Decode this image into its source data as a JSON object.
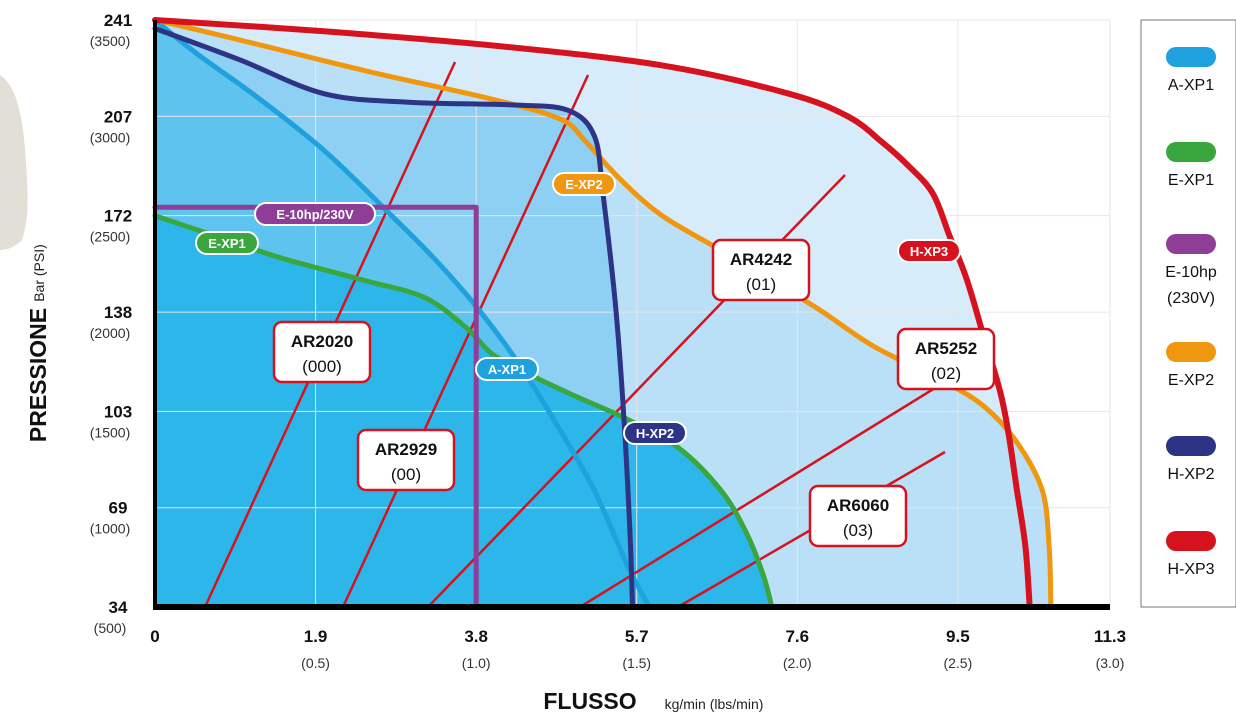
{
  "chart_data": {
    "type": "line",
    "xlabel": {
      "main": "FLUSSO",
      "sub": "kg/min (lbs/min)"
    },
    "ylabel": {
      "main": "PRESSIONE",
      "sub": "Bar (PSI)"
    },
    "x_ticks": [
      {
        "value": 0,
        "label": "0",
        "sub": ""
      },
      {
        "value": 1.9,
        "label": "1.9",
        "sub": "(0.5)"
      },
      {
        "value": 3.8,
        "label": "3.8",
        "sub": "(1.0)"
      },
      {
        "value": 5.7,
        "label": "5.7",
        "sub": "(1.5)"
      },
      {
        "value": 7.6,
        "label": "7.6",
        "sub": "(2.0)"
      },
      {
        "value": 9.5,
        "label": "9.5",
        "sub": "(2.5)"
      },
      {
        "value": 11.3,
        "label": "11.3",
        "sub": "(3.0)"
      }
    ],
    "y_ticks": [
      {
        "value": 34,
        "label": "34",
        "sub": "(500)"
      },
      {
        "value": 69,
        "label": "69",
        "sub": "(1000)"
      },
      {
        "value": 103,
        "label": "103",
        "sub": "(1500)"
      },
      {
        "value": 138,
        "label": "138",
        "sub": "(2000)"
      },
      {
        "value": 172,
        "label": "172",
        "sub": "(2500)"
      },
      {
        "value": 207,
        "label": "207",
        "sub": "(3000)"
      },
      {
        "value": 241,
        "label": "241",
        "sub": "(3500)"
      }
    ],
    "xlim": [
      0,
      11.3
    ],
    "ylim": [
      34,
      241
    ],
    "grid": true,
    "legend_position": "right",
    "series": [
      {
        "name": "A-XP1",
        "legend_label": [
          "A-XP1"
        ],
        "badge": "A-XP1",
        "color": "#1ea1dd",
        "points": [
          [
            0,
            241
          ],
          [
            0.5,
            229
          ],
          [
            1.2,
            214
          ],
          [
            2.0,
            195
          ],
          [
            2.8,
            172
          ],
          [
            3.3,
            157
          ],
          [
            3.8,
            140
          ],
          [
            4.3,
            120
          ],
          [
            4.8,
            96
          ],
          [
            5.2,
            75
          ],
          [
            5.6,
            48
          ],
          [
            5.85,
            34
          ]
        ]
      },
      {
        "name": "E-XP1",
        "legend_label": [
          "E-XP1"
        ],
        "badge": "E-XP1",
        "color": "#3aa63e",
        "points": [
          [
            0,
            172
          ],
          [
            0.8,
            164
          ],
          [
            1.5,
            157
          ],
          [
            2.5,
            149
          ],
          [
            3.2,
            143
          ],
          [
            3.7,
            132
          ],
          [
            4.0,
            123
          ],
          [
            4.5,
            115
          ],
          [
            5.0,
            108
          ],
          [
            5.6,
            100
          ],
          [
            6.2,
            90
          ],
          [
            6.7,
            75
          ],
          [
            7.0,
            60
          ],
          [
            7.2,
            45
          ],
          [
            7.3,
            34
          ]
        ]
      },
      {
        "name": "E-10hp (230V)",
        "legend_label": [
          "E-10hp",
          "(230V)"
        ],
        "badge": "E-10hp/230V",
        "color": "#8e3e97",
        "points": [
          [
            0,
            175
          ],
          [
            3.8,
            175
          ],
          [
            3.8,
            34
          ]
        ]
      },
      {
        "name": "E-XP2",
        "legend_label": [
          "E-XP2"
        ],
        "badge": "E-XP2",
        "color": "#f0960f",
        "points": [
          [
            0,
            241
          ],
          [
            1,
            234
          ],
          [
            2.5,
            223
          ],
          [
            4,
            213
          ],
          [
            4.8,
            206
          ],
          [
            5.1,
            198
          ],
          [
            5.5,
            185
          ],
          [
            6.0,
            172
          ],
          [
            6.8,
            158
          ],
          [
            7.8,
            140
          ],
          [
            8.5,
            126
          ],
          [
            9.3,
            114
          ],
          [
            9.8,
            105
          ],
          [
            10.2,
            92
          ],
          [
            10.5,
            75
          ],
          [
            10.58,
            55
          ],
          [
            10.6,
            34
          ]
        ]
      },
      {
        "name": "H-XP2",
        "legend_label": [
          "H-XP2"
        ],
        "badge": "H-XP2",
        "color": "#2d3485",
        "points": [
          [
            0,
            238
          ],
          [
            1,
            227
          ],
          [
            2,
            215
          ],
          [
            3,
            212
          ],
          [
            4.3,
            211
          ],
          [
            4.9,
            209
          ],
          [
            5.2,
            200
          ],
          [
            5.3,
            180
          ],
          [
            5.45,
            140
          ],
          [
            5.55,
            100
          ],
          [
            5.62,
            60
          ],
          [
            5.65,
            34
          ]
        ]
      },
      {
        "name": "H-XP3",
        "legend_label": [
          "H-XP3"
        ],
        "badge": "H-XP3",
        "color": "#d7121f",
        "points": [
          [
            0,
            241
          ],
          [
            2,
            237
          ],
          [
            4,
            232
          ],
          [
            6,
            225
          ],
          [
            7.5,
            215
          ],
          [
            8.2,
            207
          ],
          [
            8.6,
            198
          ],
          [
            8.9,
            190
          ],
          [
            9.2,
            180
          ],
          [
            9.4,
            165
          ],
          [
            9.6,
            150
          ],
          [
            9.8,
            130
          ],
          [
            10.0,
            110
          ],
          [
            10.1,
            95
          ],
          [
            10.2,
            75
          ],
          [
            10.3,
            55
          ],
          [
            10.35,
            34
          ]
        ]
      }
    ],
    "nozzle_lines": [
      {
        "label": "AR2020",
        "code": "(000)",
        "color": "#d7121f"
      },
      {
        "label": "AR2929",
        "code": "(00)",
        "color": "#d7121f"
      },
      {
        "label": "AR4242",
        "code": "(01)",
        "color": "#d7121f"
      },
      {
        "label": "AR5252",
        "code": "(02)",
        "color": "#d7121f"
      },
      {
        "label": "AR6060",
        "code": "(03)",
        "color": "#d7121f"
      }
    ],
    "colors": {
      "fill_outer": "#d7ecfa",
      "fill_mid": "#b9e0f7",
      "fill_mid2": "#8dd0f3",
      "fill_inner": "#5ec4ef",
      "fill_core": "#2cb6ea",
      "axis": "#000000",
      "grid": "#e6e6e6",
      "nozzle": "#d7121f"
    }
  }
}
